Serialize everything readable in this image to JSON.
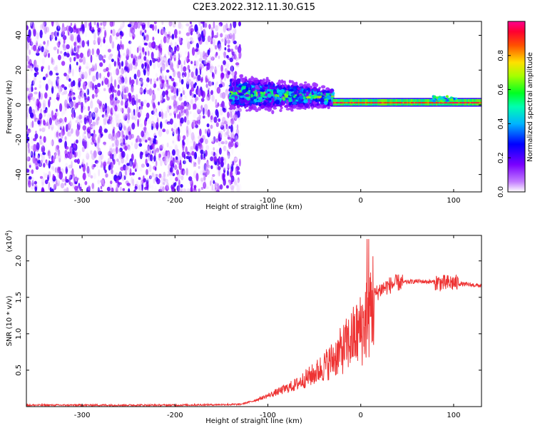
{
  "title": "C2E3.2022.312.11.30.G15",
  "colors": {
    "snr_line": "#ee3333",
    "frame": "#000000"
  },
  "chart_data": [
    {
      "type": "heatmap",
      "xlabel": "Height of straight line (km)",
      "ylabel": "Frequency (Hz)",
      "xlim": [
        -360,
        130
      ],
      "ylim": [
        -50,
        48
      ],
      "xticks": [
        -300,
        -200,
        -100,
        0,
        100
      ],
      "xtick_labels": [
        "-300",
        "-200",
        "-100",
        "0",
        "100"
      ],
      "yticks": [
        -40,
        -20,
        0,
        20,
        40
      ],
      "ytick_labels": [
        "-40",
        "-20",
        "0",
        "20",
        "40"
      ],
      "colorbar": {
        "label": "Normalized spectral amplitude",
        "range": [
          0,
          1
        ],
        "ticks": [
          0,
          0.2,
          0.4,
          0.6,
          0.8
        ],
        "tick_labels": [
          "0.0",
          "0.2",
          "0.4",
          "0.6",
          "0.8"
        ],
        "colormap": [
          "#ffffff",
          "#8800ff",
          "#0000ff",
          "#00ccff",
          "#00ff66",
          "#88ff00",
          "#ffdd00",
          "#ff3300",
          "#ff0077"
        ]
      },
      "regions": [
        {
          "x_range": [
            -360,
            -140
          ],
          "freq_range": [
            -50,
            48
          ],
          "amplitude": [
            0.0,
            0.2
          ],
          "description_level": "noise"
        },
        {
          "x_range": [
            -140,
            -30
          ],
          "freq_range": [
            -12,
            14
          ],
          "amplitude": [
            0.1,
            0.55
          ],
          "center_freq": 3
        },
        {
          "x_range": [
            -30,
            130
          ],
          "freq_range": [
            -1,
            4
          ],
          "amplitude": [
            0.6,
            1.0
          ],
          "center_freq": 1
        }
      ]
    },
    {
      "type": "line",
      "xlabel": "Height of straight line (km)",
      "ylabel": "SNR (10 * v/v)",
      "y_multiplier_label": "(x10",
      "y_multiplier_exponent": "4",
      "y_multiplier_close": ")",
      "xlim": [
        -360,
        130
      ],
      "ylim": [
        0,
        2.35
      ],
      "xticks": [
        -300,
        -200,
        -100,
        0,
        100
      ],
      "xtick_labels": [
        "-300",
        "-200",
        "-100",
        "0",
        "100"
      ],
      "yticks": [
        0.5,
        1.0,
        1.5,
        2.0
      ],
      "ytick_labels": [
        "0.5",
        "1.0",
        "1.5",
        "2.0"
      ],
      "series": [
        {
          "x": [
            -360,
            -300,
            -200,
            -130,
            -115,
            -100,
            -90,
            -80,
            -70,
            -60,
            -50,
            -40,
            -30,
            -20,
            -10,
            0,
            5,
            10,
            15,
            20,
            30,
            40,
            60,
            80,
            90,
            100,
            110,
            120,
            130
          ],
          "y": [
            0.02,
            0.02,
            0.02,
            0.03,
            0.08,
            0.15,
            0.2,
            0.25,
            0.3,
            0.38,
            0.45,
            0.55,
            0.65,
            0.78,
            0.92,
            1.05,
            1.2,
            1.38,
            1.52,
            1.6,
            1.66,
            1.7,
            1.72,
            1.71,
            1.69,
            1.7,
            1.68,
            1.67,
            1.66
          ]
        }
      ]
    }
  ]
}
